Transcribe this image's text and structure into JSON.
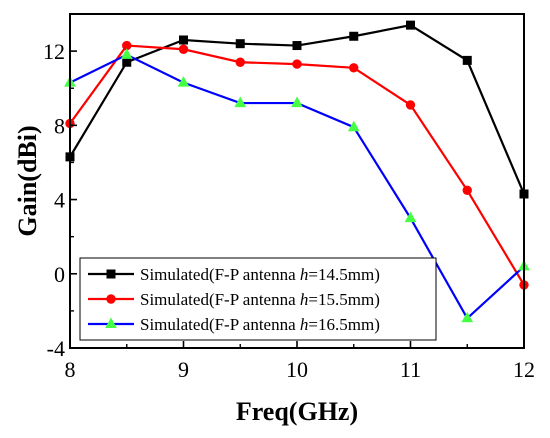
{
  "chart_data": {
    "type": "line",
    "xlabel": "Freq(GHz)",
    "ylabel": "Gain(dBi)",
    "xlim": [
      8,
      12
    ],
    "ylim": [
      -4,
      14
    ],
    "xticks": [
      8,
      9,
      10,
      11,
      12
    ],
    "yticks": [
      -4,
      0,
      4,
      8,
      12
    ],
    "x": [
      8,
      8.5,
      9,
      9.5,
      10,
      10.5,
      11,
      11.5,
      12
    ],
    "grid": false,
    "legend_position": "bottom-left",
    "series": [
      {
        "name_prefix": "Simulated(F-P antenna ",
        "name_var": "h",
        "name_suffix": "=14.5mm)",
        "color": "#000000",
        "marker": "square",
        "marker_fill": "#000000",
        "values": [
          6.3,
          11.4,
          12.6,
          12.4,
          12.3,
          12.8,
          13.4,
          11.5,
          4.3
        ]
      },
      {
        "name_prefix": "Simulated(F-P antenna ",
        "name_var": "h",
        "name_suffix": "=15.5mm)",
        "color": "#ff0000",
        "marker": "circle",
        "marker_fill": "#ff0000",
        "values": [
          8.1,
          12.3,
          12.1,
          11.4,
          11.3,
          11.1,
          9.1,
          4.5,
          -0.6
        ]
      },
      {
        "name_prefix": "Simulated(F-P antenna ",
        "name_var": "h",
        "name_suffix": "=16.5mm)",
        "color": "#0000ff",
        "marker": "triangle",
        "marker_fill": "#44ff44",
        "values": [
          10.3,
          11.8,
          10.3,
          9.2,
          9.2,
          7.9,
          3.0,
          -2.4,
          0.4
        ]
      }
    ]
  }
}
